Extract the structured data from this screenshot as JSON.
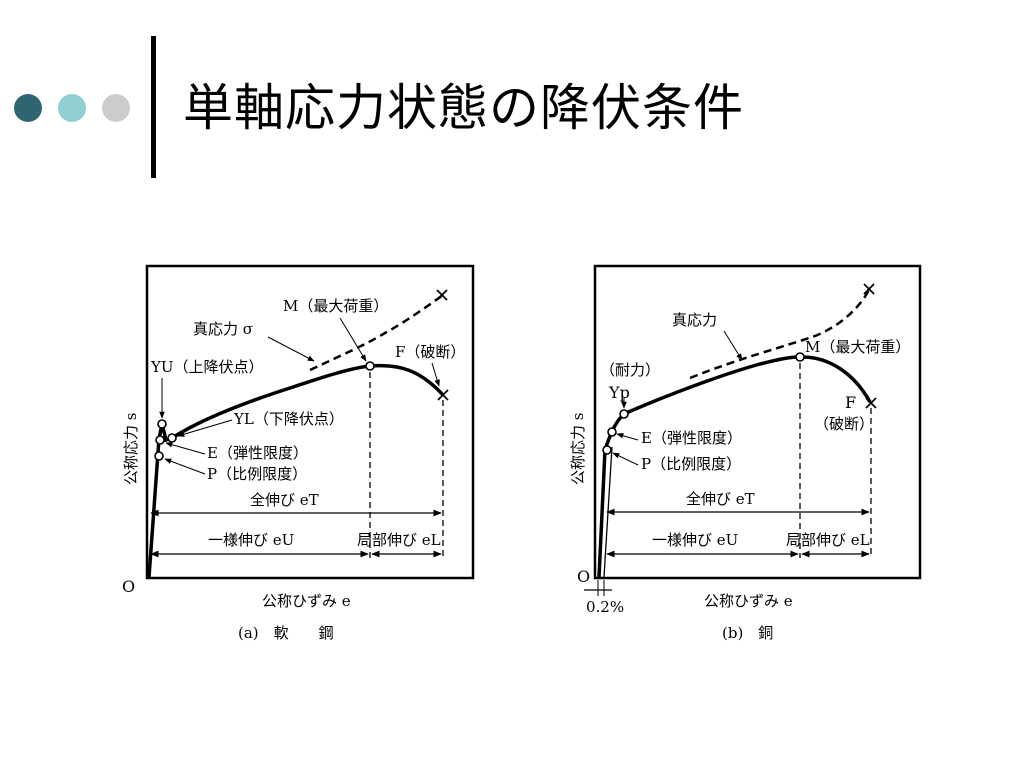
{
  "slide": {
    "title": "単軸応力状態の降伏条件",
    "dot_colors": [
      "#2f6471",
      "#91cfd3",
      "#cccccc"
    ]
  },
  "diagrams": {
    "a": {
      "caption": "(a)　軟　　鋼",
      "ylabel": "公称応力 s",
      "xlabel": "公称ひずみ e",
      "origin": "O",
      "labels": {
        "M": "M（最大荷重）",
        "true_stress": "真応力 σ",
        "F": "F（破断）",
        "YU": "YU（上降伏点）",
        "YL": "YL（下降伏点）",
        "E": "E（弾性限度）",
        "P": "P（比例限度）",
        "total": "全伸び eT",
        "uniform": "一様伸び eU",
        "local": "局部伸び eL"
      }
    },
    "b": {
      "caption": "(b)　銅",
      "ylabel": "公称応力 s",
      "xlabel": "公称ひずみ e",
      "origin": "O",
      "offset": "0.2%",
      "labels": {
        "true_stress": "真応力",
        "M": "M（最大荷重）",
        "proof": "（耐力）",
        "Yp": "Yp",
        "F": "F",
        "F_note": "（破断）",
        "E": "E（弾性限度）",
        "P": "P（比例限度）",
        "total": "全伸び eT",
        "uniform": "一様伸び eU",
        "local": "局部伸び eL"
      }
    }
  }
}
